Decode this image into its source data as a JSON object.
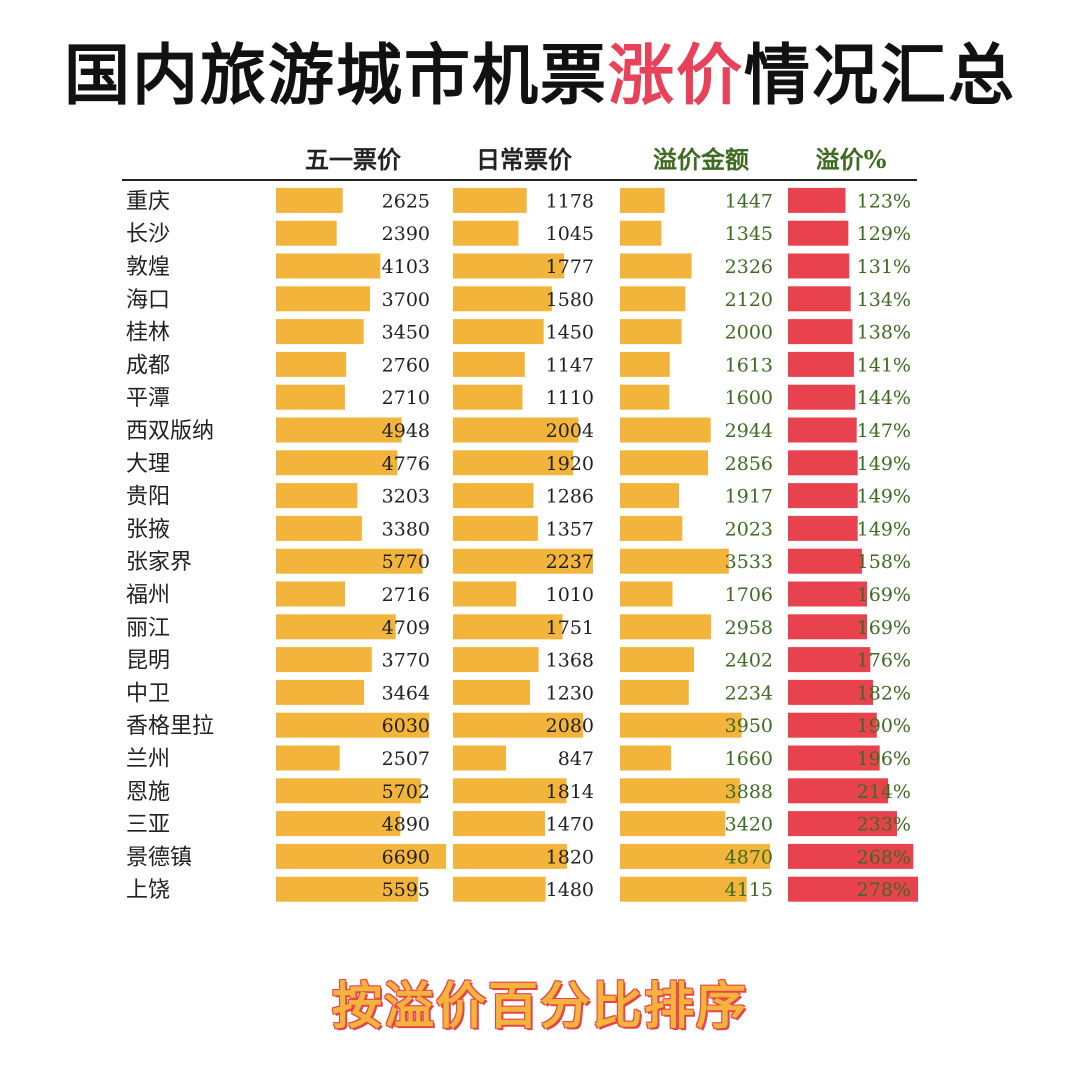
{
  "title": {
    "part1": "国内旅游城市机票",
    "highlight": "涨价",
    "part2": "情况汇总"
  },
  "footer": "按溢价百分比排序",
  "colors": {
    "bar_orange": "#f3b43b",
    "bar_red": "#e8424e",
    "header_green": "#3d6b1f",
    "text_dark": "#222222",
    "title_highlight": "#e8425a"
  },
  "chart_data": {
    "type": "table",
    "columns": [
      "五一票价",
      "日常票价",
      "溢价金额",
      "溢价%"
    ],
    "rows": [
      {
        "city": "重庆",
        "values": [
          2625,
          1178,
          1447,
          123
        ]
      },
      {
        "city": "长沙",
        "values": [
          2390,
          1045,
          1345,
          129
        ]
      },
      {
        "city": "敦煌",
        "values": [
          4103,
          1777,
          2326,
          131
        ]
      },
      {
        "city": "海口",
        "values": [
          3700,
          1580,
          2120,
          134
        ]
      },
      {
        "city": "桂林",
        "values": [
          3450,
          1450,
          2000,
          138
        ]
      },
      {
        "city": "成都",
        "values": [
          2760,
          1147,
          1613,
          141
        ]
      },
      {
        "city": "平潭",
        "values": [
          2710,
          1110,
          1600,
          144
        ]
      },
      {
        "city": "西双版纳",
        "values": [
          4948,
          2004,
          2944,
          147
        ]
      },
      {
        "city": "大理",
        "values": [
          4776,
          1920,
          2856,
          149
        ]
      },
      {
        "city": "贵阳",
        "values": [
          3203,
          1286,
          1917,
          149
        ]
      },
      {
        "city": "张掖",
        "values": [
          3380,
          1357,
          2023,
          149
        ]
      },
      {
        "city": "张家界",
        "values": [
          5770,
          2237,
          3533,
          158
        ]
      },
      {
        "city": "福州",
        "values": [
          2716,
          1010,
          1706,
          169
        ]
      },
      {
        "city": "丽江",
        "values": [
          4709,
          1751,
          2958,
          169
        ]
      },
      {
        "city": "昆明",
        "values": [
          3770,
          1368,
          2402,
          176
        ]
      },
      {
        "city": "中卫",
        "values": [
          3464,
          1230,
          2234,
          182
        ]
      },
      {
        "city": "香格里拉",
        "values": [
          6030,
          2080,
          3950,
          190
        ]
      },
      {
        "city": "兰州",
        "values": [
          2507,
          847,
          1660,
          196
        ]
      },
      {
        "city": "恩施",
        "values": [
          5702,
          1814,
          3888,
          214
        ]
      },
      {
        "city": "三亚",
        "values": [
          4890,
          1470,
          3420,
          233
        ]
      },
      {
        "city": "景德镇",
        "values": [
          6690,
          1820,
          4870,
          268
        ]
      },
      {
        "city": "上饶",
        "values": [
          5595,
          1480,
          4115,
          278
        ]
      }
    ],
    "value_suffix": [
      "",
      "",
      "",
      "%"
    ]
  }
}
